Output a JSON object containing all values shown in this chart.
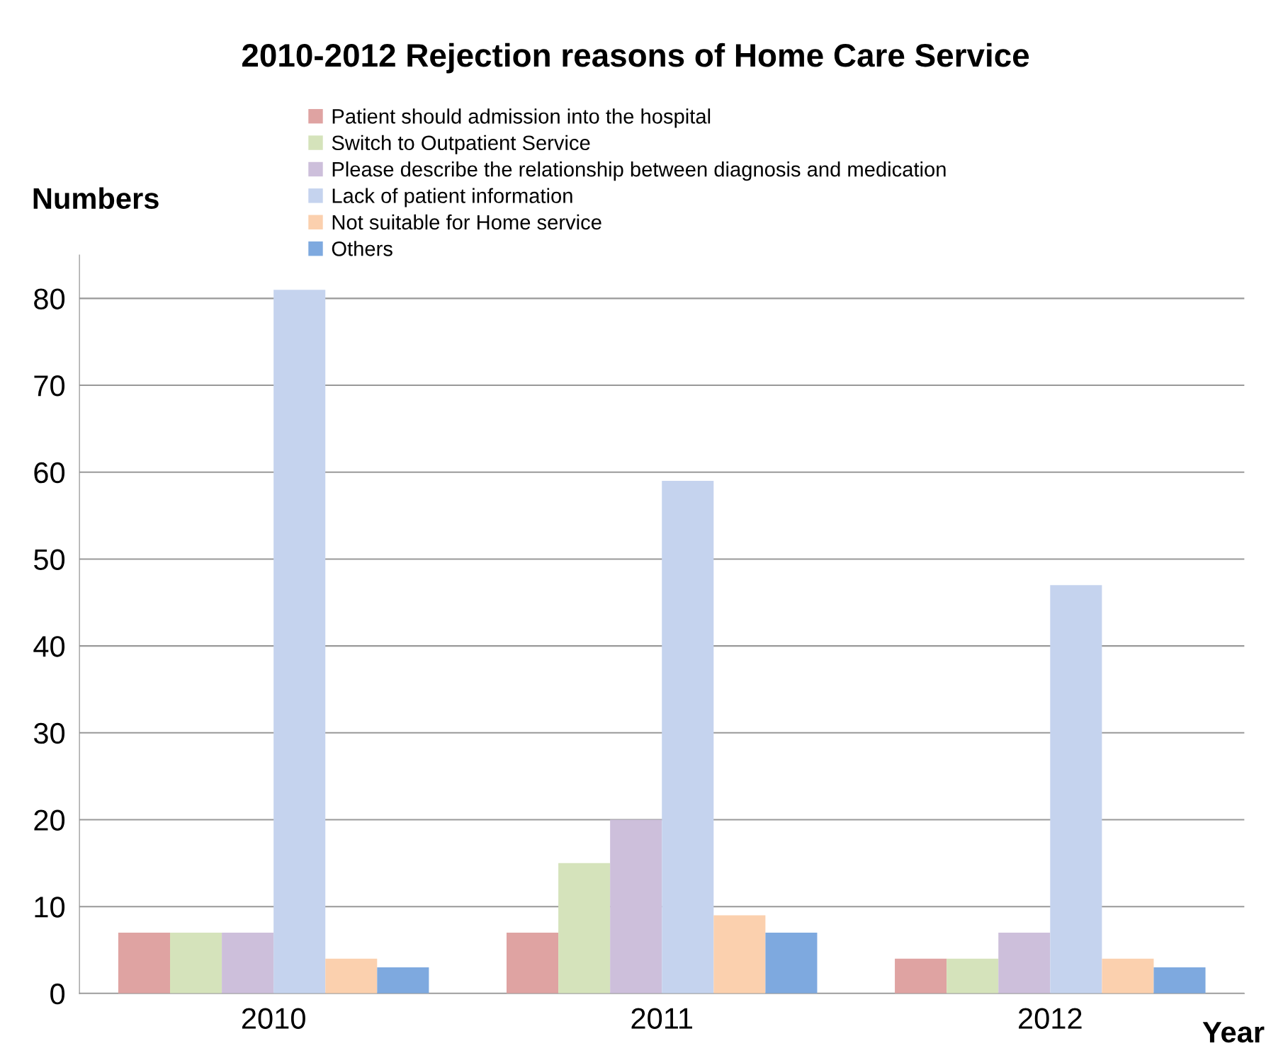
{
  "chart_data": {
    "type": "bar",
    "title": "2010-2012 Rejection reasons of Home Care Service",
    "xlabel": "Year",
    "ylabel": "Numbers",
    "categories": [
      "2010",
      "2011",
      "2012"
    ],
    "series": [
      {
        "name": "Patient should admission into the hospital",
        "color": "#dfa3a2",
        "values": [
          7,
          7,
          4
        ]
      },
      {
        "name": "Switch to Outpatient Service",
        "color": "#d5e3bb",
        "values": [
          7,
          15,
          4
        ]
      },
      {
        "name": "Please describe the relationship between diagnosis and medication",
        "color": "#cdbfdb",
        "values": [
          7,
          20,
          7
        ]
      },
      {
        "name": "Lack of patient information",
        "color": "#c5d3ee",
        "values": [
          81,
          59,
          47
        ]
      },
      {
        "name": "Not suitable for Home service",
        "color": "#fbd0ae",
        "values": [
          4,
          9,
          4
        ]
      },
      {
        "name": "Others",
        "color": "#7ea9df",
        "values": [
          3,
          7,
          3
        ]
      }
    ],
    "ylim": [
      0,
      85
    ],
    "yticks": [
      0,
      10,
      20,
      30,
      40,
      50,
      60,
      70,
      80
    ],
    "grid": "y",
    "legend": "top"
  }
}
